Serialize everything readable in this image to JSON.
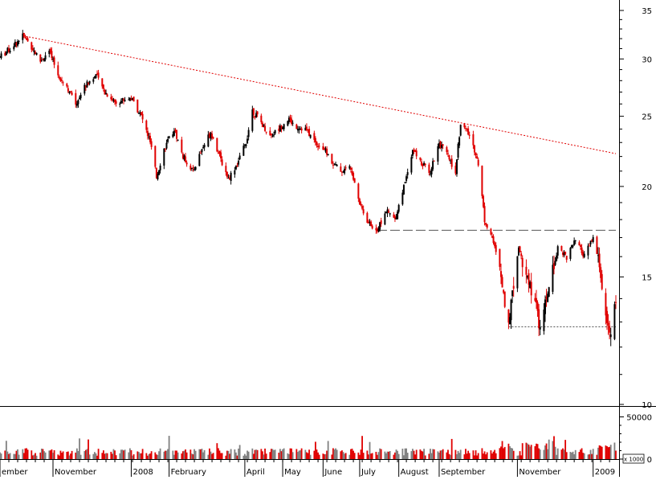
{
  "chart_data": {
    "type": "candlestick",
    "title": "",
    "price_axis": {
      "scale": "log",
      "range": [
        10,
        36
      ],
      "ticks": [
        10,
        15,
        20,
        25,
        30,
        35
      ],
      "tick_labels": [
        "10",
        "15",
        "20",
        "25",
        "30",
        "35"
      ]
    },
    "volume_axis": {
      "range": [
        0,
        60000
      ],
      "ticks": [
        0,
        50000
      ],
      "tick_labels": [
        "0",
        "50000"
      ],
      "unit_label": "x 1000"
    },
    "x_axis": {
      "range": [
        "2007-09-20",
        "2009-01-20"
      ],
      "tick_labels": [
        {
          "label": "ember",
          "date": "2007-09-20"
        },
        {
          "label": "November",
          "date": "2007-11-01"
        },
        {
          "label": "2008",
          "date": "2008-01-02"
        },
        {
          "label": "February",
          "date": "2008-02-01"
        },
        {
          "label": "April",
          "date": "2008-04-01"
        },
        {
          "label": "May",
          "date": "2008-05-01"
        },
        {
          "label": "June",
          "date": "2008-06-02"
        },
        {
          "label": "July",
          "date": "2008-07-01"
        },
        {
          "label": "August",
          "date": "2008-08-01"
        },
        {
          "label": "September",
          "date": "2008-09-02"
        },
        {
          "label": "November",
          "date": "2008-11-03"
        },
        {
          "label": "2009",
          "date": "2009-01-02"
        }
      ]
    },
    "price_path": [
      [
        "2007-09-20",
        30.2
      ],
      [
        "2007-09-28",
        31.0
      ],
      [
        "2007-10-08",
        32.3
      ],
      [
        "2007-10-15",
        31.2
      ],
      [
        "2007-10-22",
        29.8
      ],
      [
        "2007-10-29",
        30.7
      ],
      [
        "2007-11-05",
        28.5
      ],
      [
        "2007-11-12",
        27.5
      ],
      [
        "2007-11-19",
        26.0
      ],
      [
        "2007-11-26",
        27.5
      ],
      [
        "2007-12-05",
        28.5
      ],
      [
        "2007-12-12",
        27.0
      ],
      [
        "2007-12-20",
        26.2
      ],
      [
        "2008-01-02",
        26.5
      ],
      [
        "2008-01-10",
        25.0
      ],
      [
        "2008-01-17",
        23.0
      ],
      [
        "2008-01-22",
        20.6
      ],
      [
        "2008-01-28",
        22.5
      ],
      [
        "2008-02-05",
        24.0
      ],
      [
        "2008-02-12",
        22.0
      ],
      [
        "2008-02-20",
        21.0
      ],
      [
        "2008-02-27",
        22.5
      ],
      [
        "2008-03-05",
        23.8
      ],
      [
        "2008-03-12",
        22.0
      ],
      [
        "2008-03-19",
        20.5
      ],
      [
        "2008-03-26",
        21.5
      ],
      [
        "2008-04-02",
        23.0
      ],
      [
        "2008-04-07",
        25.5
      ],
      [
        "2008-04-14",
        24.5
      ],
      [
        "2008-04-21",
        23.5
      ],
      [
        "2008-04-28",
        24.0
      ],
      [
        "2008-05-05",
        24.8
      ],
      [
        "2008-05-12",
        24.2
      ],
      [
        "2008-05-19",
        24.0
      ],
      [
        "2008-05-27",
        23.0
      ],
      [
        "2008-06-03",
        22.5
      ],
      [
        "2008-06-10",
        21.5
      ],
      [
        "2008-06-17",
        21.0
      ],
      [
        "2008-06-24",
        21.3
      ],
      [
        "2008-07-01",
        19.0
      ],
      [
        "2008-07-08",
        17.8
      ],
      [
        "2008-07-15",
        17.4
      ],
      [
        "2008-07-22",
        18.5
      ],
      [
        "2008-07-29",
        18.0
      ],
      [
        "2008-08-05",
        20.0
      ],
      [
        "2008-08-12",
        22.5
      ],
      [
        "2008-08-19",
        21.5
      ],
      [
        "2008-08-26",
        21.0
      ],
      [
        "2008-09-02",
        23.0
      ],
      [
        "2008-09-09",
        22.0
      ],
      [
        "2008-09-15",
        21.0
      ],
      [
        "2008-09-19",
        24.5
      ],
      [
        "2008-09-26",
        23.5
      ],
      [
        "2008-10-02",
        22.0
      ],
      [
        "2008-10-08",
        18.0
      ],
      [
        "2008-10-14",
        17.0
      ],
      [
        "2008-10-21",
        15.0
      ],
      [
        "2008-10-27",
        12.9
      ],
      [
        "2008-11-04",
        16.5
      ],
      [
        "2008-11-11",
        15.0
      ],
      [
        "2008-11-18",
        13.5
      ],
      [
        "2008-11-21",
        12.5
      ],
      [
        "2008-11-28",
        14.5
      ],
      [
        "2008-12-05",
        16.5
      ],
      [
        "2008-12-12",
        16.0
      ],
      [
        "2008-12-19",
        16.8
      ],
      [
        "2008-12-26",
        16.0
      ],
      [
        "2009-01-02",
        17.0
      ],
      [
        "2009-01-07",
        15.5
      ],
      [
        "2009-01-12",
        13.5
      ],
      [
        "2009-01-15",
        12.5
      ],
      [
        "2009-01-20",
        13.7
      ]
    ],
    "annotations": [
      {
        "type": "trendline",
        "style": "dotted",
        "color": "#e00000",
        "from": [
          "2007-10-08",
          32.3
        ],
        "to": [
          "2009-01-20",
          22.2
        ]
      },
      {
        "type": "horizontal",
        "style": "dashed",
        "color": "#555555",
        "value": 17.4,
        "from": "2008-07-15",
        "to": "2009-01-20"
      },
      {
        "type": "horizontal",
        "style": "dotted",
        "color": "#555555",
        "value": 12.8,
        "from": "2008-10-27",
        "to": "2009-01-20"
      }
    ],
    "colors": {
      "up": "#000000",
      "down": "#e00000",
      "volume_up": "#808080",
      "volume_down": "#e00000"
    }
  }
}
